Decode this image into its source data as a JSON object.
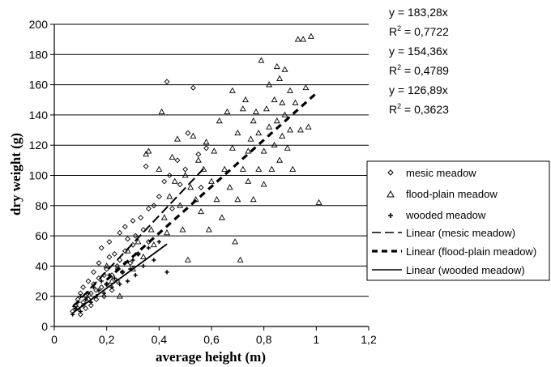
{
  "chart_data": {
    "type": "scatter",
    "title": "",
    "xlabel": "average height (m)",
    "ylabel": "dry weight (g)",
    "xlim": [
      0,
      1.2
    ],
    "ylim": [
      0,
      200
    ],
    "x_ticks": [
      {
        "value": 0,
        "label": "0"
      },
      {
        "value": 0.2,
        "label": "0,2"
      },
      {
        "value": 0.4,
        "label": "0,4"
      },
      {
        "value": 0.6,
        "label": "0,6"
      },
      {
        "value": 0.8,
        "label": "0,8"
      },
      {
        "value": 1.0,
        "label": "1"
      },
      {
        "value": 1.2,
        "label": "1,2"
      }
    ],
    "y_ticks": [
      {
        "value": 0,
        "label": "0"
      },
      {
        "value": 20,
        "label": "20"
      },
      {
        "value": 40,
        "label": "40"
      },
      {
        "value": 60,
        "label": "60"
      },
      {
        "value": 80,
        "label": "80"
      },
      {
        "value": 100,
        "label": "100"
      },
      {
        "value": 120,
        "label": "120"
      },
      {
        "value": 140,
        "label": "140"
      },
      {
        "value": 160,
        "label": "160"
      },
      {
        "value": 180,
        "label": "180"
      },
      {
        "value": 200,
        "label": "200"
      }
    ],
    "grid": "horizontal",
    "legend_position": "right",
    "equations": [
      {
        "eq": "y = 183,28x",
        "r2_prefix": "R",
        "r2_sup": "2",
        "r2_value": " = 0,7722"
      },
      {
        "eq": "y = 154,36x",
        "r2_prefix": "R",
        "r2_sup": "2",
        "r2_value": " = 0,4789"
      },
      {
        "eq": "y = 126,89x",
        "r2_prefix": "R",
        "r2_sup": "2",
        "r2_value": " = 0,3623"
      }
    ],
    "series": [
      {
        "name": "mesic meadow",
        "marker": "diamond-open",
        "points": [
          [
            0.07,
            10
          ],
          [
            0.08,
            14
          ],
          [
            0.09,
            18
          ],
          [
            0.09,
            12
          ],
          [
            0.1,
            22
          ],
          [
            0.1,
            8
          ],
          [
            0.11,
            26
          ],
          [
            0.11,
            16
          ],
          [
            0.12,
            20
          ],
          [
            0.12,
            12
          ],
          [
            0.13,
            30
          ],
          [
            0.13,
            18
          ],
          [
            0.14,
            22
          ],
          [
            0.14,
            14
          ],
          [
            0.15,
            28
          ],
          [
            0.15,
            36
          ],
          [
            0.16,
            24
          ],
          [
            0.16,
            18
          ],
          [
            0.17,
            32
          ],
          [
            0.17,
            42
          ],
          [
            0.18,
            26
          ],
          [
            0.18,
            52
          ],
          [
            0.19,
            34
          ],
          [
            0.19,
            20
          ],
          [
            0.2,
            38
          ],
          [
            0.2,
            28
          ],
          [
            0.21,
            46
          ],
          [
            0.21,
            56
          ],
          [
            0.22,
            34
          ],
          [
            0.22,
            24
          ],
          [
            0.23,
            48
          ],
          [
            0.24,
            40
          ],
          [
            0.24,
            30
          ],
          [
            0.25,
            62
          ],
          [
            0.25,
            44
          ],
          [
            0.26,
            36
          ],
          [
            0.27,
            66
          ],
          [
            0.27,
            50
          ],
          [
            0.28,
            58
          ],
          [
            0.29,
            42
          ],
          [
            0.3,
            70
          ],
          [
            0.3,
            54
          ],
          [
            0.31,
            60
          ],
          [
            0.32,
            48
          ],
          [
            0.33,
            72
          ],
          [
            0.34,
            64
          ],
          [
            0.35,
            106
          ],
          [
            0.36,
            78
          ],
          [
            0.36,
            56
          ],
          [
            0.38,
            80
          ],
          [
            0.4,
            86
          ],
          [
            0.42,
            96
          ],
          [
            0.43,
            162
          ],
          [
            0.44,
            100
          ],
          [
            0.45,
            78
          ],
          [
            0.47,
            110
          ],
          [
            0.48,
            94
          ],
          [
            0.5,
            104
          ],
          [
            0.51,
            128
          ],
          [
            0.53,
            158
          ],
          [
            0.55,
            114
          ],
          [
            0.56,
            92
          ],
          [
            0.58,
            118
          ]
        ]
      },
      {
        "name": "flood-plain meadow",
        "marker": "triangle-open",
        "points": [
          [
            0.2,
            40
          ],
          [
            0.22,
            30
          ],
          [
            0.25,
            20
          ],
          [
            0.28,
            50
          ],
          [
            0.3,
            38
          ],
          [
            0.32,
            56
          ],
          [
            0.34,
            46
          ],
          [
            0.35,
            114
          ],
          [
            0.36,
            116
          ],
          [
            0.37,
            64
          ],
          [
            0.38,
            54
          ],
          [
            0.4,
            104
          ],
          [
            0.41,
            142
          ],
          [
            0.42,
            72
          ],
          [
            0.43,
            62
          ],
          [
            0.44,
            86
          ],
          [
            0.45,
            112
          ],
          [
            0.46,
            96
          ],
          [
            0.47,
            124
          ],
          [
            0.48,
            80
          ],
          [
            0.49,
            64
          ],
          [
            0.5,
            100
          ],
          [
            0.51,
            44
          ],
          [
            0.52,
            92
          ],
          [
            0.53,
            126
          ],
          [
            0.54,
            84
          ],
          [
            0.55,
            110
          ],
          [
            0.56,
            76
          ],
          [
            0.57,
            104
          ],
          [
            0.58,
            122
          ],
          [
            0.59,
            64
          ],
          [
            0.6,
            96
          ],
          [
            0.61,
            116
          ],
          [
            0.62,
            84
          ],
          [
            0.63,
            136
          ],
          [
            0.64,
            72
          ],
          [
            0.65,
            104
          ],
          [
            0.66,
            142
          ],
          [
            0.67,
            92
          ],
          [
            0.68,
            156
          ],
          [
            0.68,
            118
          ],
          [
            0.69,
            56
          ],
          [
            0.7,
            84
          ],
          [
            0.7,
            128
          ],
          [
            0.71,
            44
          ],
          [
            0.72,
            104
          ],
          [
            0.72,
            144
          ],
          [
            0.73,
            150
          ],
          [
            0.74,
            96
          ],
          [
            0.74,
            116
          ],
          [
            0.75,
            124
          ],
          [
            0.76,
            136
          ],
          [
            0.76,
            84
          ],
          [
            0.77,
            142
          ],
          [
            0.78,
            104
          ],
          [
            0.78,
            128
          ],
          [
            0.79,
            176
          ],
          [
            0.8,
            116
          ],
          [
            0.8,
            94
          ],
          [
            0.81,
            144
          ],
          [
            0.82,
            132
          ],
          [
            0.82,
            160
          ],
          [
            0.83,
            104
          ],
          [
            0.84,
            150
          ],
          [
            0.84,
            120
          ],
          [
            0.85,
            172
          ],
          [
            0.85,
            136
          ],
          [
            0.86,
            164
          ],
          [
            0.86,
            110
          ],
          [
            0.87,
            148
          ],
          [
            0.87,
            126
          ],
          [
            0.88,
            170
          ],
          [
            0.88,
            140
          ],
          [
            0.89,
            118
          ],
          [
            0.9,
            156
          ],
          [
            0.9,
            130
          ],
          [
            0.91,
            104
          ],
          [
            0.92,
            148
          ],
          [
            0.93,
            190
          ],
          [
            0.94,
            130
          ],
          [
            0.95,
            190
          ],
          [
            0.96,
            158
          ],
          [
            0.97,
            132
          ],
          [
            0.98,
            192
          ],
          [
            1.01,
            82
          ]
        ]
      },
      {
        "name": "wooded meadow",
        "marker": "plus",
        "points": [
          [
            0.07,
            8
          ],
          [
            0.08,
            12
          ],
          [
            0.09,
            16
          ],
          [
            0.1,
            10
          ],
          [
            0.1,
            20
          ],
          [
            0.11,
            14
          ],
          [
            0.12,
            18
          ],
          [
            0.13,
            22
          ],
          [
            0.14,
            16
          ],
          [
            0.15,
            26
          ],
          [
            0.16,
            20
          ],
          [
            0.17,
            24
          ],
          [
            0.18,
            30
          ],
          [
            0.19,
            22
          ],
          [
            0.2,
            28
          ],
          [
            0.21,
            34
          ],
          [
            0.22,
            26
          ],
          [
            0.23,
            32
          ],
          [
            0.24,
            38
          ],
          [
            0.25,
            28
          ],
          [
            0.26,
            36
          ],
          [
            0.27,
            42
          ],
          [
            0.28,
            30
          ],
          [
            0.29,
            38
          ],
          [
            0.3,
            44
          ],
          [
            0.31,
            34
          ],
          [
            0.32,
            48
          ],
          [
            0.34,
            40
          ],
          [
            0.36,
            52
          ],
          [
            0.38,
            44
          ],
          [
            0.4,
            56
          ],
          [
            0.43,
            36
          ]
        ]
      }
    ],
    "trendlines": [
      {
        "name": "Linear (mesic meadow)",
        "slope": 183.28,
        "x_range": [
          0.07,
          0.58
        ],
        "style": "long-dash"
      },
      {
        "name": "Linear (flood-plain meadow)",
        "slope": 154.36,
        "x_range": [
          0.2,
          1.0
        ],
        "style": "heavy-dash"
      },
      {
        "name": "Linear (wooded meadow)",
        "slope": 126.89,
        "x_range": [
          0.07,
          0.43
        ],
        "style": "solid"
      }
    ]
  },
  "colors": {
    "mesic_marker": "#000000",
    "floodplain_marker": "#000000",
    "wooded_marker": "#000000",
    "grid": "#000000",
    "background": "#ffffff"
  }
}
